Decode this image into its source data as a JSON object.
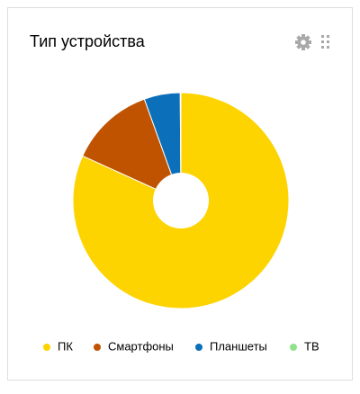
{
  "chart_data": {
    "type": "pie",
    "title": "Тип устройства",
    "categories": [
      "ПК",
      "Смартфоны",
      "Планшеты",
      "ТВ"
    ],
    "values": [
      81.8,
      12.7,
      5.4,
      0.1
    ],
    "colors": [
      "#fdd300",
      "#c05300",
      "#0b6fb9",
      "#8fe28a"
    ]
  }
}
